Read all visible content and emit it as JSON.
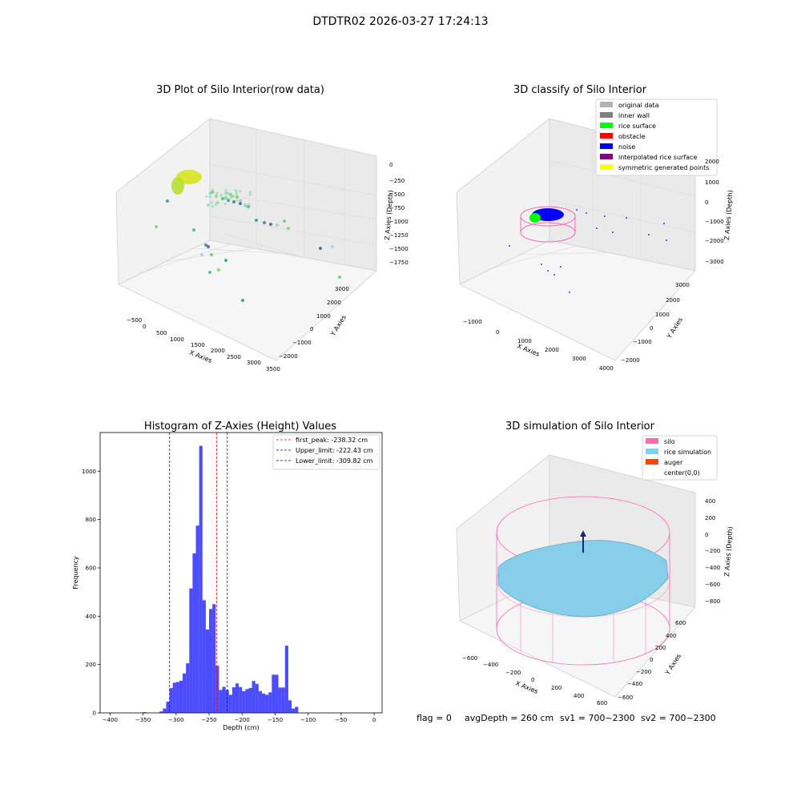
{
  "suptitle": "DTDTR02 2026-03-27 17:24:13",
  "status_line": {
    "flag": "flag = 0",
    "avg": "avgDepth = 260 cm",
    "sv1": "sv1 = 700~2300",
    "sv2": "sv2 = 700~2300"
  },
  "panel1": {
    "title": "3D Plot of Silo Interior(row data)",
    "xlabel": "X Axies",
    "ylabel": "Y Axies",
    "zlabel": "Z Axies (Depth)",
    "xticks": [
      "−500",
      "0",
      "500",
      "1000",
      "1500",
      "2000",
      "2500",
      "3000",
      "3500"
    ],
    "yticks": [
      "3000",
      "2000",
      "1000",
      "0",
      "−1000",
      "−2000"
    ],
    "zticks": [
      "0",
      "−250",
      "−500",
      "−750",
      "−1000",
      "−1250",
      "−1500",
      "−1750"
    ],
    "colormap": "viridis"
  },
  "panel2": {
    "title": "3D classify of Silo Interior",
    "xlabel": "X Axies",
    "ylabel": "Y Axies",
    "zlabel": "Z Axies (Depth)",
    "xticks": [
      "−1000",
      "0",
      "1000",
      "2000",
      "3000",
      "4000"
    ],
    "yticks": [
      "3000",
      "2000",
      "1000",
      "0",
      "−1000",
      "−2000"
    ],
    "zticks": [
      "2000",
      "1000",
      "0",
      "−1000",
      "−2000",
      "−3000"
    ],
    "legend": [
      {
        "label": "original data",
        "color": "#b3b3b3"
      },
      {
        "label": "inner wall",
        "color": "#808080"
      },
      {
        "label": "rice surface",
        "color": "#00ff00"
      },
      {
        "label": "obstacle",
        "color": "#ff0000"
      },
      {
        "label": "noise",
        "color": "#0000ff"
      },
      {
        "label": "interpolated rice surface",
        "color": "#800080"
      },
      {
        "label": "symmetric generated points",
        "color": "#ffff00"
      }
    ]
  },
  "panel4": {
    "title": "3D simulation of Silo Interior",
    "xlabel": "X Axies",
    "ylabel": "Y Axies",
    "zlabel": "Z Axies (Depth)",
    "xticks": [
      "−600",
      "−400",
      "−200",
      "0",
      "200",
      "400",
      "600"
    ],
    "yticks": [
      "600",
      "400",
      "200",
      "0",
      "−200",
      "−400",
      "−600"
    ],
    "zticks": [
      "400",
      "200",
      "0",
      "−200",
      "−400",
      "−600",
      "−800"
    ],
    "legend": [
      {
        "label": "silo",
        "color": "#ff69b4"
      },
      {
        "label": "rice simulation",
        "color": "#87ceeb"
      },
      {
        "label": "auger",
        "color": "#ff4500"
      },
      {
        "label": "center(0,0)",
        "color": "none"
      }
    ]
  },
  "chart_data": {
    "type": "bar",
    "title": "Histogram of Z-Axies (Height) Values",
    "xlabel": "Depth (cm)",
    "ylabel": "Frequency",
    "xlim": [
      -415,
      12
    ],
    "ylim": [
      0,
      1160
    ],
    "xticks": [
      -400,
      -350,
      -300,
      -250,
      -200,
      -150,
      -100,
      -50,
      0
    ],
    "yticks": [
      0,
      200,
      400,
      600,
      800,
      1000
    ],
    "bin_start": -380,
    "bin_width": 5,
    "values": [
      0,
      0,
      0,
      0,
      0,
      0,
      3,
      0,
      0,
      0,
      0,
      6,
      18,
      46,
      103,
      125,
      128,
      133,
      163,
      205,
      515,
      660,
      775,
      1105,
      466,
      345,
      430,
      450,
      195,
      95,
      108,
      95,
      75,
      106,
      122,
      107,
      90,
      98,
      103,
      132,
      120,
      90,
      80,
      75,
      85,
      158,
      158,
      105,
      105,
      278,
      52,
      18,
      25
    ],
    "color": "#0000ff",
    "legend": [
      {
        "label": "first_peak: -238.32 cm",
        "value": -238.32,
        "color": "#ff0000"
      },
      {
        "label": "Upper_limit: -222.43 cm",
        "value": -222.43,
        "color": "#0000cc"
      },
      {
        "label": "Lower_limit: -309.82 cm",
        "value": -309.82,
        "color": "#0000cc"
      }
    ],
    "legend_position": "top-right"
  }
}
